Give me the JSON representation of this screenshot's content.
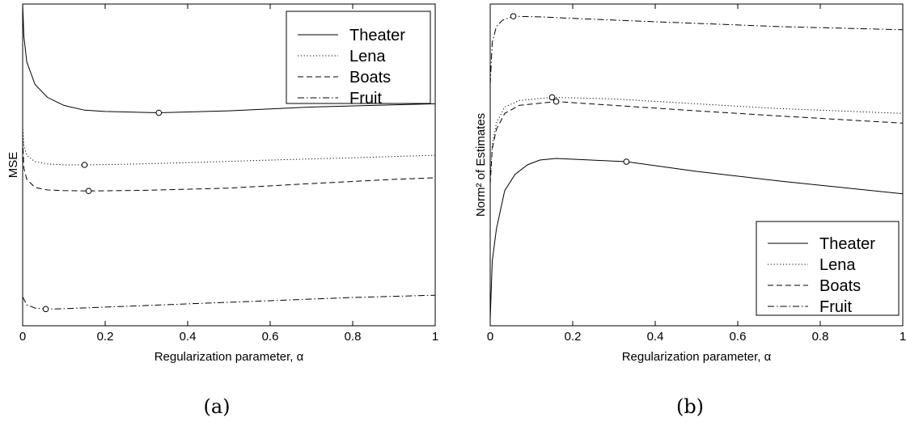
{
  "chart_data": [
    {
      "type": "line",
      "panel_caption": "(a)",
      "xlabel": "Regularization parameter, α",
      "ylabel": "MSE",
      "xlim": [
        0,
        1
      ],
      "ylim": [
        0,
        1
      ],
      "y_ticks_shown": false,
      "x_ticks": [
        "0",
        "0.2",
        "0.4",
        "0.6",
        "0.8",
        "1"
      ],
      "legend_position": "top-right",
      "series": [
        {
          "name": "Theater",
          "dash": "solid",
          "x": [
            0,
            0.003,
            0.01,
            0.03,
            0.06,
            0.1,
            0.15,
            0.2,
            0.33,
            0.5,
            0.7,
            1.0
          ],
          "y": [
            1.0,
            0.9,
            0.82,
            0.75,
            0.71,
            0.685,
            0.67,
            0.666,
            0.662,
            0.668,
            0.68,
            0.69
          ],
          "optimum": {
            "x": 0.33,
            "y": 0.662
          }
        },
        {
          "name": "Lena",
          "dash": "dotted",
          "x": [
            0,
            0.003,
            0.01,
            0.03,
            0.06,
            0.1,
            0.15,
            0.25,
            0.4,
            0.6,
            0.8,
            1.0
          ],
          "y": [
            0.62,
            0.56,
            0.53,
            0.51,
            0.503,
            0.5,
            0.5,
            0.502,
            0.507,
            0.515,
            0.522,
            0.53
          ],
          "optimum": {
            "x": 0.15,
            "y": 0.5
          }
        },
        {
          "name": "Boats",
          "dash": "dashed",
          "x": [
            0,
            0.003,
            0.01,
            0.03,
            0.06,
            0.1,
            0.16,
            0.3,
            0.5,
            0.7,
            0.9,
            1.0
          ],
          "y": [
            0.58,
            0.49,
            0.455,
            0.43,
            0.422,
            0.42,
            0.419,
            0.421,
            0.428,
            0.442,
            0.455,
            0.46
          ],
          "optimum": {
            "x": 0.16,
            "y": 0.419
          }
        },
        {
          "name": "Fruit",
          "dash": "dashdot",
          "x": [
            0,
            0.01,
            0.03,
            0.056,
            0.1,
            0.2,
            0.4,
            0.6,
            0.8,
            1.0
          ],
          "y": [
            0.09,
            0.065,
            0.055,
            0.052,
            0.053,
            0.058,
            0.068,
            0.078,
            0.088,
            0.095
          ],
          "optimum": {
            "x": 0.056,
            "y": 0.052
          }
        }
      ]
    },
    {
      "type": "line",
      "panel_caption": "(b)",
      "xlabel": "Regularization parameter, α",
      "ylabel": "Norm² of Estimates",
      "xlim": [
        0,
        1
      ],
      "ylim": [
        0,
        1
      ],
      "y_ticks_shown": false,
      "x_ticks": [
        "0",
        "0.2",
        "0.4",
        "0.6",
        "0.8",
        "1"
      ],
      "legend_position": "bottom-right",
      "series": [
        {
          "name": "Theater",
          "dash": "solid",
          "x": [
            0,
            0.005,
            0.015,
            0.035,
            0.06,
            0.09,
            0.12,
            0.16,
            0.33,
            0.5,
            0.7,
            1.0
          ],
          "y": [
            0.02,
            0.2,
            0.3,
            0.42,
            0.47,
            0.5,
            0.515,
            0.52,
            0.51,
            0.48,
            0.45,
            0.41
          ],
          "optimum": {
            "x": 0.33,
            "y": 0.51
          }
        },
        {
          "name": "Lena",
          "dash": "dotted",
          "x": [
            0,
            0.005,
            0.015,
            0.035,
            0.07,
            0.15,
            0.3,
            0.5,
            0.7,
            1.0
          ],
          "y": [
            0.45,
            0.56,
            0.63,
            0.68,
            0.7,
            0.71,
            0.705,
            0.69,
            0.675,
            0.66
          ],
          "optimum": {
            "x": 0.15,
            "y": 0.71
          }
        },
        {
          "name": "Boats",
          "dash": "dashed",
          "x": [
            0,
            0.005,
            0.015,
            0.035,
            0.07,
            0.16,
            0.3,
            0.5,
            0.7,
            1.0
          ],
          "y": [
            0.44,
            0.55,
            0.61,
            0.66,
            0.685,
            0.697,
            0.685,
            0.668,
            0.652,
            0.63
          ],
          "optimum": {
            "x": 0.16,
            "y": 0.697
          }
        },
        {
          "name": "Fruit",
          "dash": "dashdot",
          "x": [
            0,
            0.005,
            0.015,
            0.03,
            0.056,
            0.12,
            0.3,
            0.5,
            0.7,
            1.0
          ],
          "y": [
            0.75,
            0.88,
            0.93,
            0.95,
            0.962,
            0.96,
            0.95,
            0.94,
            0.93,
            0.92
          ],
          "optimum": {
            "x": 0.056,
            "y": 0.962
          }
        }
      ]
    }
  ]
}
